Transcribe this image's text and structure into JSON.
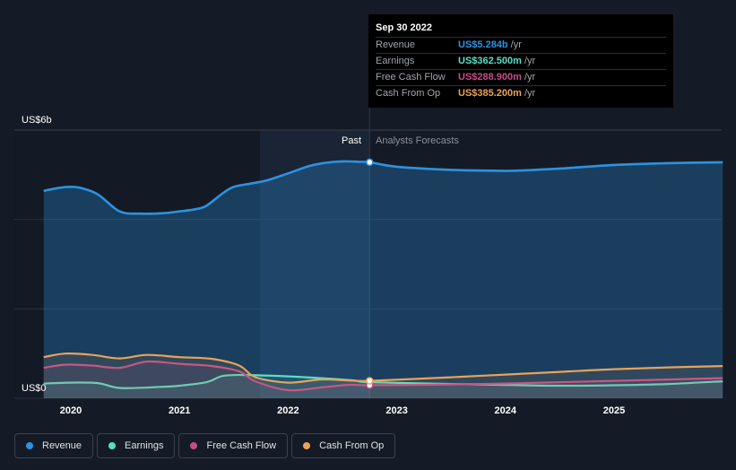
{
  "chart_data": {
    "type": "area",
    "ylabel_top": "US$6b",
    "ylabel_bottom": "US$0",
    "ylim": [
      0,
      6
    ],
    "unit": "US$ billions",
    "x_ticks": [
      "2020",
      "2021",
      "2022",
      "2023",
      "2024",
      "2025"
    ],
    "grid": true,
    "past_label": "Past",
    "forecast_label": "Analysts Forecasts",
    "divider_date": 2022.75,
    "series": [
      {
        "name": "Revenue",
        "color": "#2b93e1",
        "x": [
          2019.75,
          2019.9,
          2020.0,
          2020.1,
          2020.25,
          2020.45,
          2020.65,
          2020.85,
          2021.0,
          2021.15,
          2021.25,
          2021.4,
          2021.5,
          2021.65,
          2021.8,
          2022.0,
          2022.2,
          2022.35,
          2022.5,
          2022.65,
          2022.75,
          2023.0,
          2023.5,
          2023.9,
          2024.1,
          2024.5,
          2025.0,
          2025.5,
          2026.0
        ],
        "y": [
          4.64,
          4.71,
          4.73,
          4.7,
          4.56,
          4.18,
          4.13,
          4.14,
          4.18,
          4.23,
          4.31,
          4.59,
          4.73,
          4.8,
          4.87,
          5.03,
          5.2,
          5.27,
          5.3,
          5.29,
          5.28,
          5.18,
          5.11,
          5.09,
          5.09,
          5.14,
          5.22,
          5.26,
          5.28
        ]
      },
      {
        "name": "Earnings",
        "color": "#58dfc4",
        "x": [
          2019.75,
          2020.0,
          2020.25,
          2020.45,
          2020.8,
          2021.0,
          2021.25,
          2021.4,
          2021.6,
          2022.0,
          2022.3,
          2022.6,
          2022.75,
          2023.5,
          2024.0,
          2024.5,
          2025.0,
          2025.5,
          2026.0
        ],
        "y": [
          0.33,
          0.35,
          0.34,
          0.23,
          0.25,
          0.28,
          0.36,
          0.5,
          0.52,
          0.49,
          0.45,
          0.4,
          0.36,
          0.32,
          0.3,
          0.28,
          0.29,
          0.32,
          0.38
        ]
      },
      {
        "name": "Free Cash Flow",
        "color": "#c24e87",
        "x": [
          2019.75,
          2019.95,
          2020.2,
          2020.45,
          2020.7,
          2021.0,
          2021.3,
          2021.55,
          2021.7,
          2022.0,
          2022.3,
          2022.55,
          2022.75,
          2023.5,
          2024.0,
          2024.5,
          2025.0,
          2025.5,
          2026.0
        ],
        "y": [
          0.68,
          0.75,
          0.73,
          0.68,
          0.82,
          0.77,
          0.72,
          0.6,
          0.38,
          0.18,
          0.24,
          0.3,
          0.29,
          0.31,
          0.33,
          0.36,
          0.39,
          0.42,
          0.45
        ]
      },
      {
        "name": "Cash From Op",
        "color": "#e9a25a",
        "x": [
          2019.75,
          2019.95,
          2020.2,
          2020.45,
          2020.7,
          2021.0,
          2021.3,
          2021.55,
          2021.7,
          2022.0,
          2022.3,
          2022.55,
          2022.75,
          2023.5,
          2024.0,
          2024.5,
          2025.0,
          2025.5,
          2026.0
        ],
        "y": [
          0.92,
          1.0,
          0.97,
          0.89,
          0.97,
          0.92,
          0.88,
          0.73,
          0.47,
          0.35,
          0.42,
          0.4,
          0.39,
          0.47,
          0.53,
          0.59,
          0.65,
          0.69,
          0.72
        ]
      }
    ]
  },
  "tooltip": {
    "date": "Sep 30 2022",
    "rows": [
      {
        "label": "Revenue",
        "value": "US$5.284b",
        "unit": "/yr",
        "color": "#2b93e1"
      },
      {
        "label": "Earnings",
        "value": "US$362.500m",
        "unit": "/yr",
        "color": "#58dfc4"
      },
      {
        "label": "Free Cash Flow",
        "value": "US$288.900m",
        "unit": "/yr",
        "color": "#c24e87"
      },
      {
        "label": "Cash From Op",
        "value": "US$385.200m",
        "unit": "/yr",
        "color": "#e9a25a"
      }
    ]
  },
  "legend": [
    {
      "label": "Revenue",
      "color": "#2b93e1"
    },
    {
      "label": "Earnings",
      "color": "#58dfc4"
    },
    {
      "label": "Free Cash Flow",
      "color": "#c24e87"
    },
    {
      "label": "Cash From Op",
      "color": "#e9a25a"
    }
  ]
}
